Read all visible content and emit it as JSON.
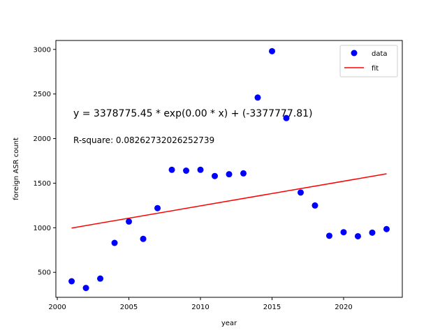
{
  "chart_data": {
    "type": "scatter",
    "title": "",
    "xlabel": "year",
    "ylabel": "foreign ASR count",
    "xlim": [
      1999.9,
      2024.1
    ],
    "ylim": [
      220,
      3100
    ],
    "xticks": [
      2000,
      2005,
      2010,
      2015,
      2020
    ],
    "yticks": [
      500,
      1000,
      1500,
      2000,
      2500,
      3000
    ],
    "grid": false,
    "legend_position": "top-right",
    "series": [
      {
        "name": "data",
        "kind": "scatter",
        "color": "#0000ff",
        "x": [
          2001,
          2002,
          2003,
          2004,
          2005,
          2006,
          2007,
          2008,
          2009,
          2010,
          2011,
          2012,
          2013,
          2014,
          2015,
          2016,
          2017,
          2018,
          2019,
          2020,
          2021,
          2022,
          2023
        ],
        "y": [
          400,
          325,
          430,
          830,
          1070,
          875,
          1220,
          1650,
          1640,
          1650,
          1580,
          1600,
          1610,
          2460,
          2980,
          2230,
          1395,
          1250,
          910,
          950,
          905,
          945,
          985
        ]
      },
      {
        "name": "fit",
        "kind": "line",
        "color": "#ff0000",
        "x": [
          2001,
          2023
        ],
        "y": [
          997,
          1605
        ]
      }
    ],
    "annotations": [
      "y = 3378775.45 * exp(0.00 * x) + (-3377777.81)",
      "R-square: 0.08262732026252739"
    ]
  }
}
